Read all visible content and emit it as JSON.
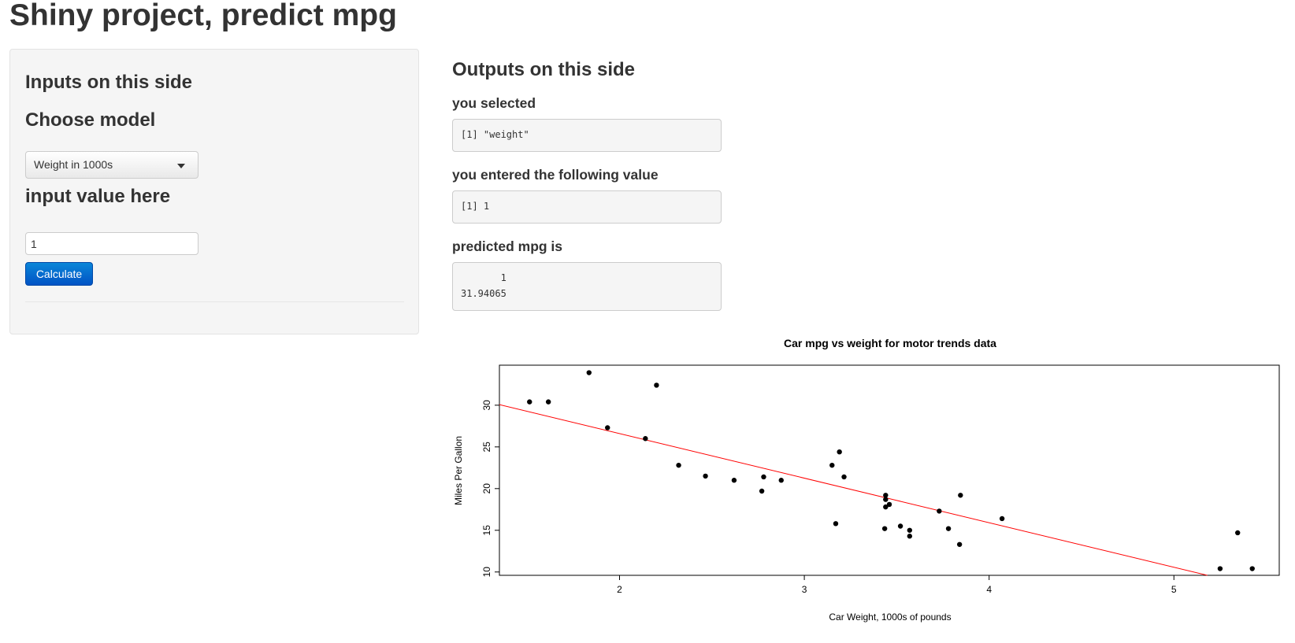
{
  "title": "Shiny project, predict mpg",
  "sidebar": {
    "heading": "Inputs on this side",
    "model_label": "Choose model",
    "model_selected": "Weight in 1000s",
    "value_label": "input value here",
    "value": "1",
    "button_label": "Calculate"
  },
  "main": {
    "heading": "Outputs on this side",
    "selected_label": "you selected",
    "selected_output": "[1] \"weight\"",
    "entered_label": "you entered the following value",
    "entered_output": "[1] 1",
    "predicted_label": "predicted mpg is",
    "predicted_output_header": "       1",
    "predicted_output_value": "31.94065"
  },
  "colors": {
    "point": "#000000",
    "regression_line": "#ff0000",
    "button": "#0a6fd6"
  },
  "chart_data": {
    "type": "scatter",
    "title": "Car mpg vs weight for motor trends data",
    "xlabel": "Car Weight, 1000s of pounds",
    "ylabel": "Miles Per Gallon",
    "xlim": [
      1.35,
      5.57
    ],
    "ylim": [
      9.6,
      34.8
    ],
    "xticks": [
      2,
      3,
      4,
      5
    ],
    "yticks": [
      10,
      15,
      20,
      25,
      30
    ],
    "points": [
      [
        2.62,
        21.0
      ],
      [
        2.875,
        21.0
      ],
      [
        2.32,
        22.8
      ],
      [
        3.215,
        21.4
      ],
      [
        3.44,
        18.7
      ],
      [
        3.46,
        18.1
      ],
      [
        3.57,
        14.3
      ],
      [
        3.19,
        24.4
      ],
      [
        3.15,
        22.8
      ],
      [
        3.44,
        19.2
      ],
      [
        3.44,
        17.8
      ],
      [
        4.07,
        16.4
      ],
      [
        3.73,
        17.3
      ],
      [
        3.78,
        15.2
      ],
      [
        5.25,
        10.4
      ],
      [
        5.424,
        10.4
      ],
      [
        5.345,
        14.7
      ],
      [
        2.2,
        32.4
      ],
      [
        1.615,
        30.4
      ],
      [
        1.835,
        33.9
      ],
      [
        2.465,
        21.5
      ],
      [
        3.52,
        15.5
      ],
      [
        3.435,
        15.2
      ],
      [
        3.84,
        13.3
      ],
      [
        3.845,
        19.2
      ],
      [
        1.935,
        27.3
      ],
      [
        2.14,
        26.0
      ],
      [
        1.513,
        30.4
      ],
      [
        3.17,
        15.8
      ],
      [
        2.77,
        19.7
      ],
      [
        3.57,
        15.0
      ],
      [
        2.78,
        21.4
      ]
    ],
    "regression": {
      "intercept": 37.285,
      "slope": -5.344
    }
  }
}
